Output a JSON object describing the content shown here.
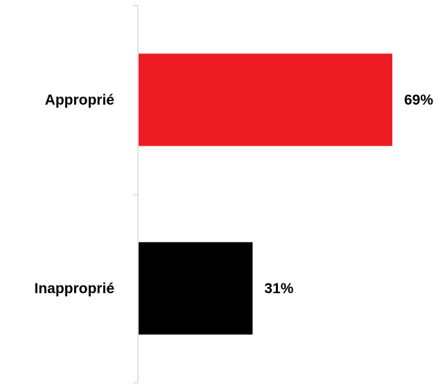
{
  "chart_data": {
    "type": "bar",
    "orientation": "horizontal",
    "categories": [
      "Approprié",
      "Inapproprié"
    ],
    "values": [
      69,
      31
    ],
    "value_labels": [
      "69%",
      "31%"
    ],
    "unit": "%",
    "xlim": [
      0,
      69
    ],
    "title": "",
    "xlabel": "",
    "ylabel": "",
    "grid": false,
    "legend": "none",
    "colors": [
      "#ed1c24",
      "#000000"
    ],
    "axis_color": "#d9d9d9"
  }
}
